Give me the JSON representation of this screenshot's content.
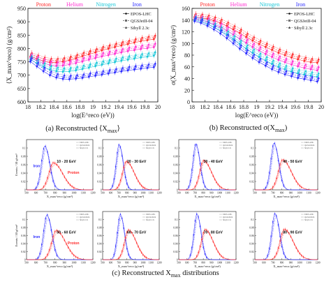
{
  "colors": {
    "proton": "#ff2a2a",
    "helium": "#ff2fd1",
    "nitrogen": "#18c7d8",
    "iron": "#2a2aff",
    "gray": "#8c8c8c",
    "black": "#111111"
  },
  "captions": {
    "a": "(a)  Reconstructed ⟨X",
    "a_sub": "max",
    "a_end": "⟩",
    "b": "(b)  Reconstructed σ(X",
    "b_sub": "max",
    "b_end": ")",
    "c": "(c)  Reconstructed X",
    "c_sub": "max",
    "c_end": " distributions"
  },
  "chart_data": [
    {
      "type": "line",
      "panel": "a",
      "ylabel": "⟨X_max^reco⟩ (g/cm²)",
      "xlabel": "log(E^reco (eV))",
      "xlim": [
        18,
        20
      ],
      "ylim": [
        600,
        950
      ],
      "xticks": [
        "18",
        "18.2",
        "18.4",
        "18.6",
        "18.8",
        "19",
        "19.2",
        "19.4",
        "19.6",
        "19.8",
        "20"
      ],
      "yticks": [
        "600",
        "650",
        "700",
        "750",
        "800",
        "850",
        "900",
        "950"
      ],
      "composition_labels": [
        "Proton",
        "Helium",
        "Nitrogen",
        "Iron"
      ],
      "legend": [
        "EPOS-LHC",
        "QGSJetII-04",
        "Sibyll 2.3c"
      ],
      "x": [
        18.05,
        18.15,
        18.25,
        18.35,
        18.45,
        18.55,
        18.65,
        18.75,
        18.85,
        18.95,
        19.05,
        19.15,
        19.25,
        19.35,
        19.45,
        19.55,
        19.65,
        19.75,
        19.85,
        19.95
      ],
      "series": [
        {
          "name": "Proton",
          "color": "proton",
          "values": [
            777,
            768,
            760,
            755,
            755,
            758,
            763,
            770,
            778,
            785,
            792,
            800,
            806,
            812,
            818,
            823,
            829,
            834,
            838,
            842
          ]
        },
        {
          "name": "Helium",
          "color": "helium",
          "values": [
            772,
            762,
            752,
            745,
            742,
            743,
            747,
            752,
            758,
            765,
            771,
            777,
            782,
            787,
            792,
            797,
            801,
            805,
            808,
            812
          ]
        },
        {
          "name": "Nitrogen",
          "color": "nitrogen",
          "values": [
            765,
            752,
            738,
            728,
            722,
            720,
            721,
            725,
            730,
            735,
            741,
            746,
            751,
            756,
            761,
            765,
            769,
            773,
            776,
            780
          ]
        },
        {
          "name": "Iron",
          "color": "iron",
          "values": [
            758,
            740,
            722,
            707,
            698,
            693,
            692,
            694,
            697,
            701,
            705,
            709,
            713,
            717,
            721,
            725,
            728,
            731,
            734,
            737
          ]
        }
      ]
    },
    {
      "type": "line",
      "panel": "b",
      "ylabel": "σ(X_max^reco) (g/cm²)",
      "xlabel": "log(E^reco (eV))",
      "xlim": [
        18,
        20
      ],
      "ylim": [
        0,
        160
      ],
      "xticks": [
        "18",
        "18.2",
        "18.4",
        "18.6",
        "18.8",
        "19",
        "19.2",
        "19.4",
        "19.6",
        "19.8",
        "20"
      ],
      "yticks": [
        "0",
        "20",
        "40",
        "60",
        "80",
        "100",
        "120",
        "140",
        "160"
      ],
      "composition_labels": [
        "Proton",
        "Helium",
        "Nitrogen",
        "Iron"
      ],
      "legend": [
        "EPOS-LHC",
        "QGSJetII-04",
        "Sibyll 2.3c"
      ],
      "x": [
        18.05,
        18.15,
        18.25,
        18.35,
        18.45,
        18.55,
        18.65,
        18.75,
        18.85,
        18.95,
        19.05,
        19.15,
        19.25,
        19.35,
        19.45,
        19.55,
        19.65,
        19.75,
        19.85,
        19.95
      ],
      "series": [
        {
          "name": "Proton",
          "color": "proton",
          "values": [
            148,
            147,
            145,
            142,
            138,
            133,
            127,
            121,
            114,
            108,
            102,
            97,
            92,
            87,
            83,
            79,
            76,
            73,
            71,
            70
          ]
        },
        {
          "name": "Helium",
          "color": "helium",
          "values": [
            145,
            143,
            140,
            136,
            131,
            125,
            118,
            111,
            104,
            97,
            91,
            85,
            80,
            75,
            71,
            67,
            64,
            61,
            59,
            57
          ]
        },
        {
          "name": "Nitrogen",
          "color": "nitrogen",
          "values": [
            143,
            140,
            136,
            131,
            125,
            118,
            110,
            102,
            94,
            87,
            80,
            74,
            68,
            63,
            59,
            55,
            52,
            50,
            48,
            46
          ]
        },
        {
          "name": "Iron",
          "color": "iron",
          "values": [
            141,
            138,
            133,
            127,
            120,
            112,
            103,
            94,
            86,
            78,
            71,
            65,
            59,
            54,
            50,
            47,
            44,
            42,
            40,
            38
          ]
        }
      ]
    },
    {
      "type": "line",
      "panel": "c",
      "ylabel": "Events / 10 g/cm²",
      "xlabel": "X_max^reco (g/cm²)",
      "xlim": [
        500,
        1200
      ],
      "ylim": [
        0,
        0.12
      ],
      "xticks": [
        "500",
        "600",
        "700",
        "800",
        "900",
        "1000",
        "1100",
        "1200"
      ],
      "yticks": [
        "0",
        "0.02",
        "0.04",
        "0.06",
        "0.08",
        "0.1"
      ],
      "legend": [
        "EPOS-LHC",
        "QGSJetII-04",
        "Sibyll 2.3c"
      ],
      "species_labels": [
        "Iron",
        "Proton"
      ],
      "panels": [
        {
          "label": "10 - 20 EeV",
          "iron_peak": 700,
          "iron_height": 0.105,
          "proton_peak": 790,
          "proton_height": 0.065
        },
        {
          "label": "20 - 30 EeV",
          "iron_peak": 710,
          "iron_height": 0.108,
          "proton_peak": 800,
          "proton_height": 0.068
        },
        {
          "label": "30 - 40 EeV",
          "iron_peak": 715,
          "iron_height": 0.11,
          "proton_peak": 810,
          "proton_height": 0.07
        },
        {
          "label": "40 - 50 EeV",
          "iron_peak": 720,
          "iron_height": 0.112,
          "proton_peak": 815,
          "proton_height": 0.072
        },
        {
          "label": "50 - 60 EeV",
          "iron_peak": 722,
          "iron_height": 0.112,
          "proton_peak": 820,
          "proton_height": 0.073
        },
        {
          "label": "60 - 70 EeV",
          "iron_peak": 725,
          "iron_height": 0.113,
          "proton_peak": 825,
          "proton_height": 0.074
        },
        {
          "label": "70 - 80 EeV",
          "iron_peak": 728,
          "iron_height": 0.114,
          "proton_peak": 830,
          "proton_height": 0.075
        },
        {
          "label": "80 - 90 EeV",
          "iron_peak": 730,
          "iron_height": 0.115,
          "proton_peak": 835,
          "proton_height": 0.076
        }
      ]
    }
  ]
}
